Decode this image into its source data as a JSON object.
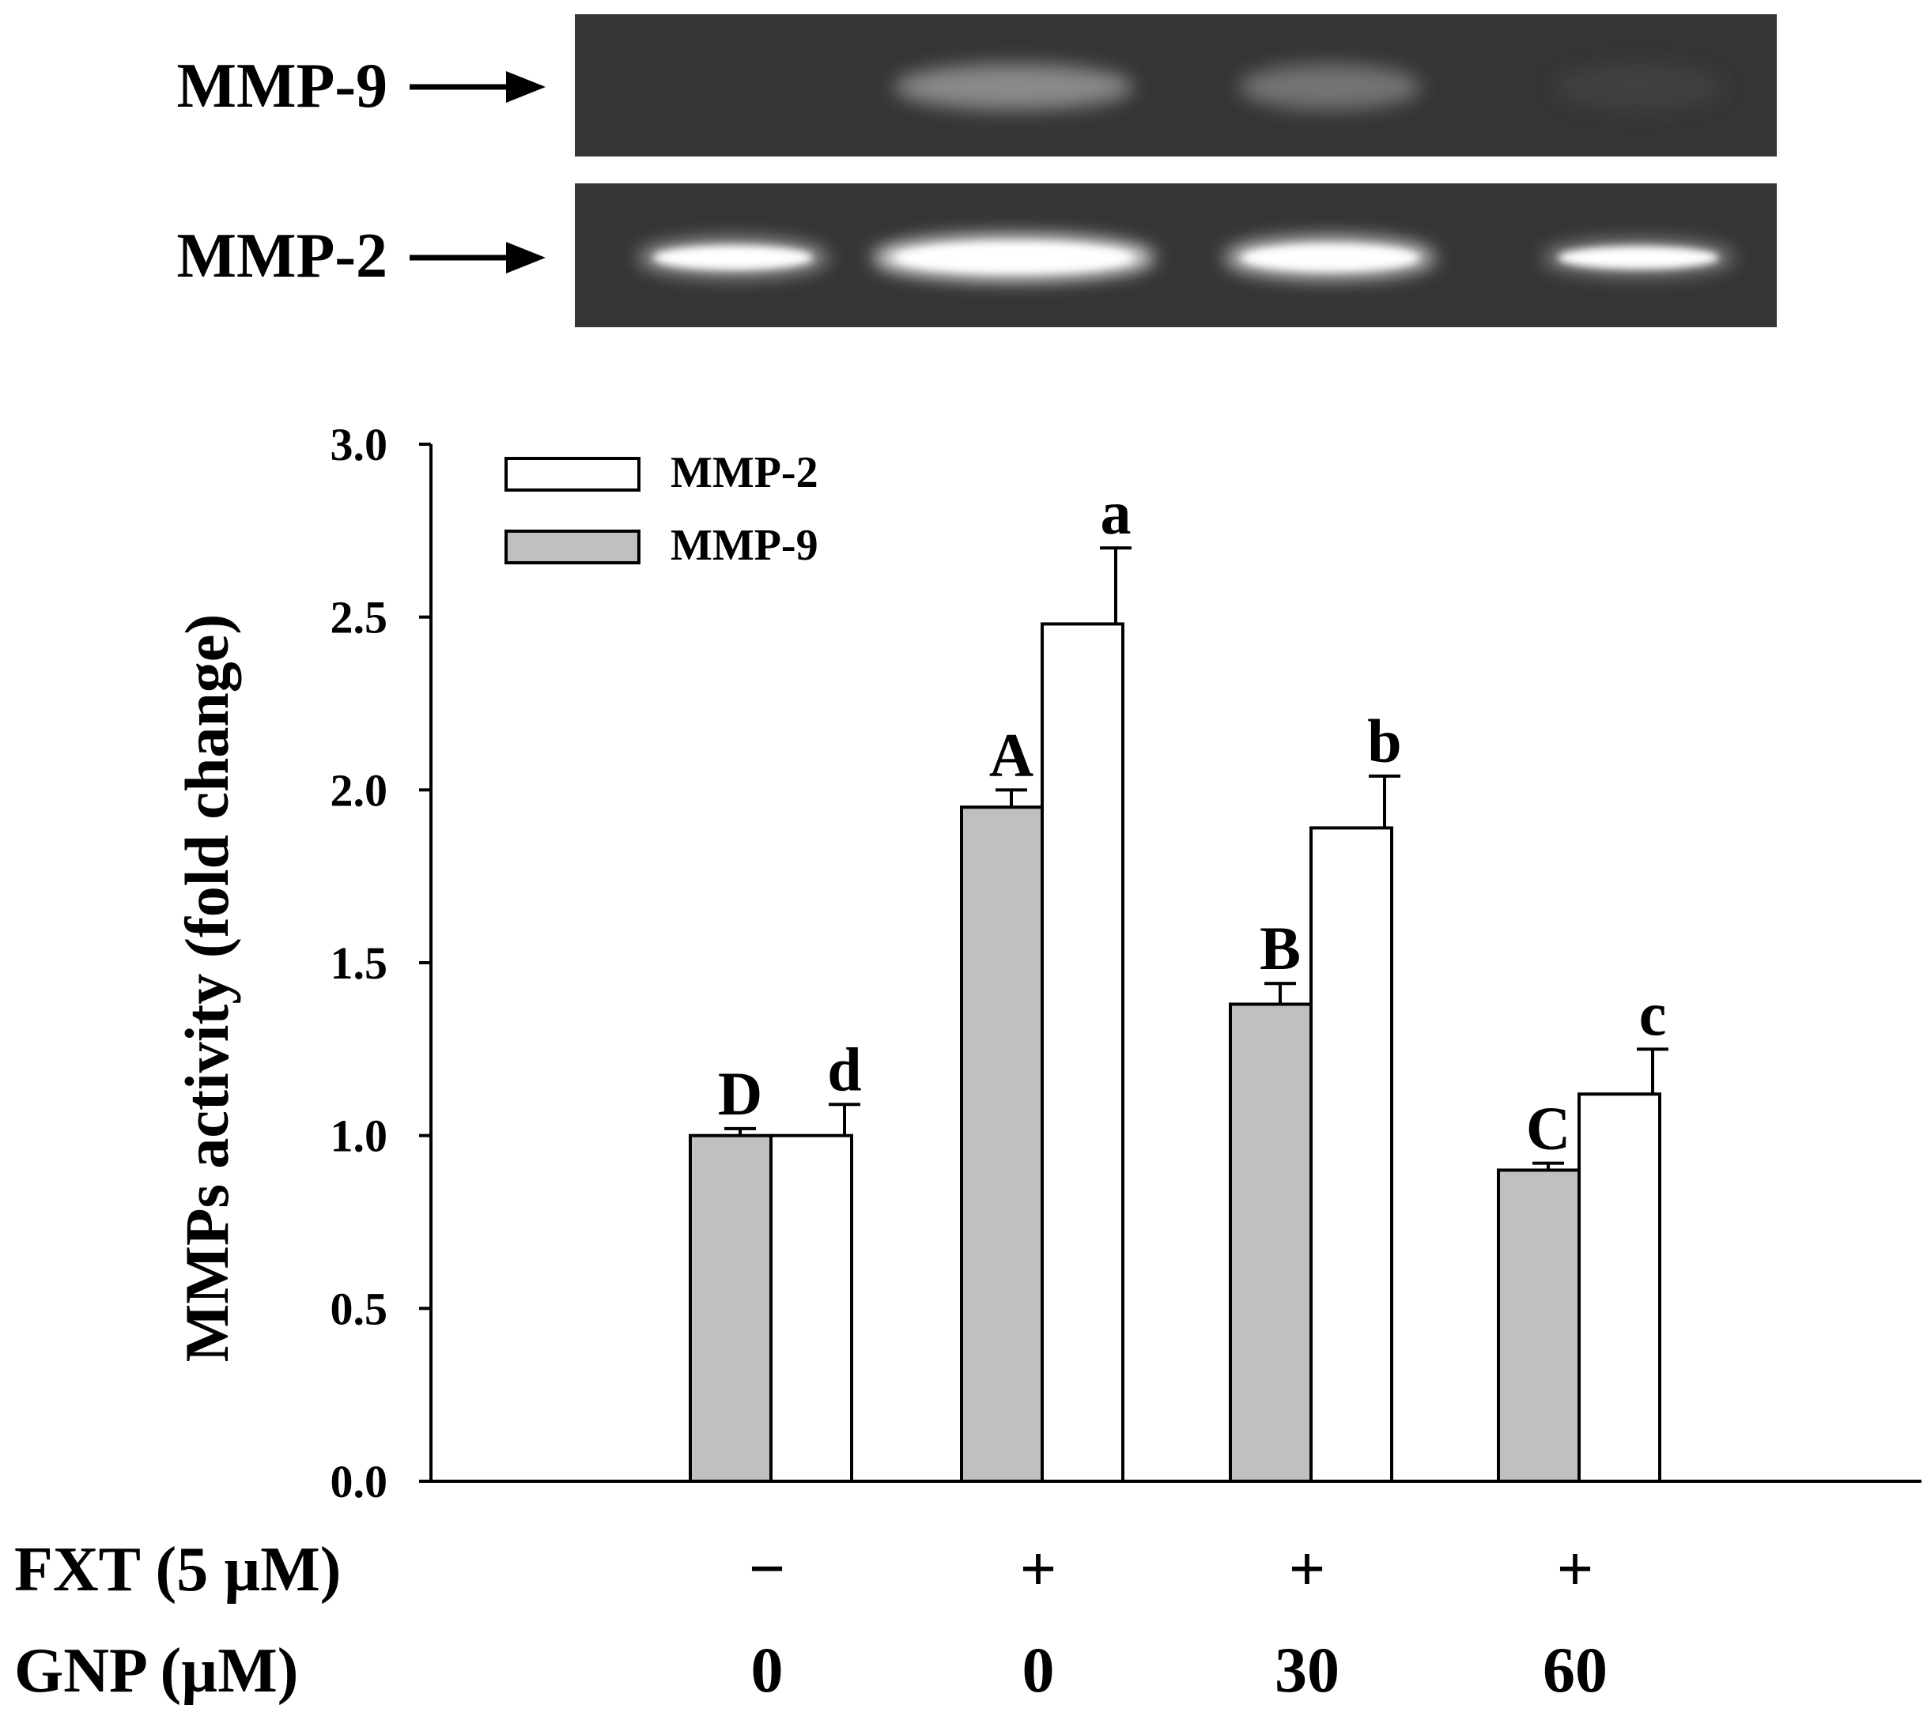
{
  "gel": {
    "bands": [
      {
        "label": "MMP-9",
        "intensities": [
          0.0,
          0.4,
          0.28,
          0.02
        ]
      },
      {
        "label": "MMP-2",
        "intensities": [
          0.55,
          1.0,
          0.8,
          0.4
        ]
      }
    ]
  },
  "chart_data": {
    "type": "bar",
    "title": "",
    "xlabel": "",
    "ylabel": "MMPs activity (fold change)",
    "ylim": [
      0,
      3.0
    ],
    "yticks": [
      "0.0",
      "0.5",
      "1.0",
      "1.5",
      "2.0",
      "2.5",
      "3.0"
    ],
    "grid": false,
    "legend_position": "top-left",
    "groups": 4,
    "series": [
      {
        "name": "MMP-9",
        "color": "#c0c0c0",
        "values": [
          1.0,
          1.95,
          1.38,
          0.9
        ],
        "errors": [
          0.02,
          0.05,
          0.06,
          0.02
        ],
        "letters": [
          "D",
          "A",
          "B",
          "C"
        ]
      },
      {
        "name": "MMP-2",
        "color": "#ffffff",
        "values": [
          1.0,
          2.48,
          1.89,
          1.12
        ],
        "errors": [
          0.09,
          0.22,
          0.15,
          0.13
        ],
        "letters": [
          "d",
          "a",
          "b",
          "c"
        ]
      }
    ],
    "conditions": [
      {
        "label": "FXT (5 µM)",
        "values": [
          "−",
          "+",
          "+",
          "+"
        ]
      },
      {
        "label": "GNP (µM)",
        "values": [
          "0",
          "0",
          "30",
          "60"
        ]
      }
    ]
  }
}
